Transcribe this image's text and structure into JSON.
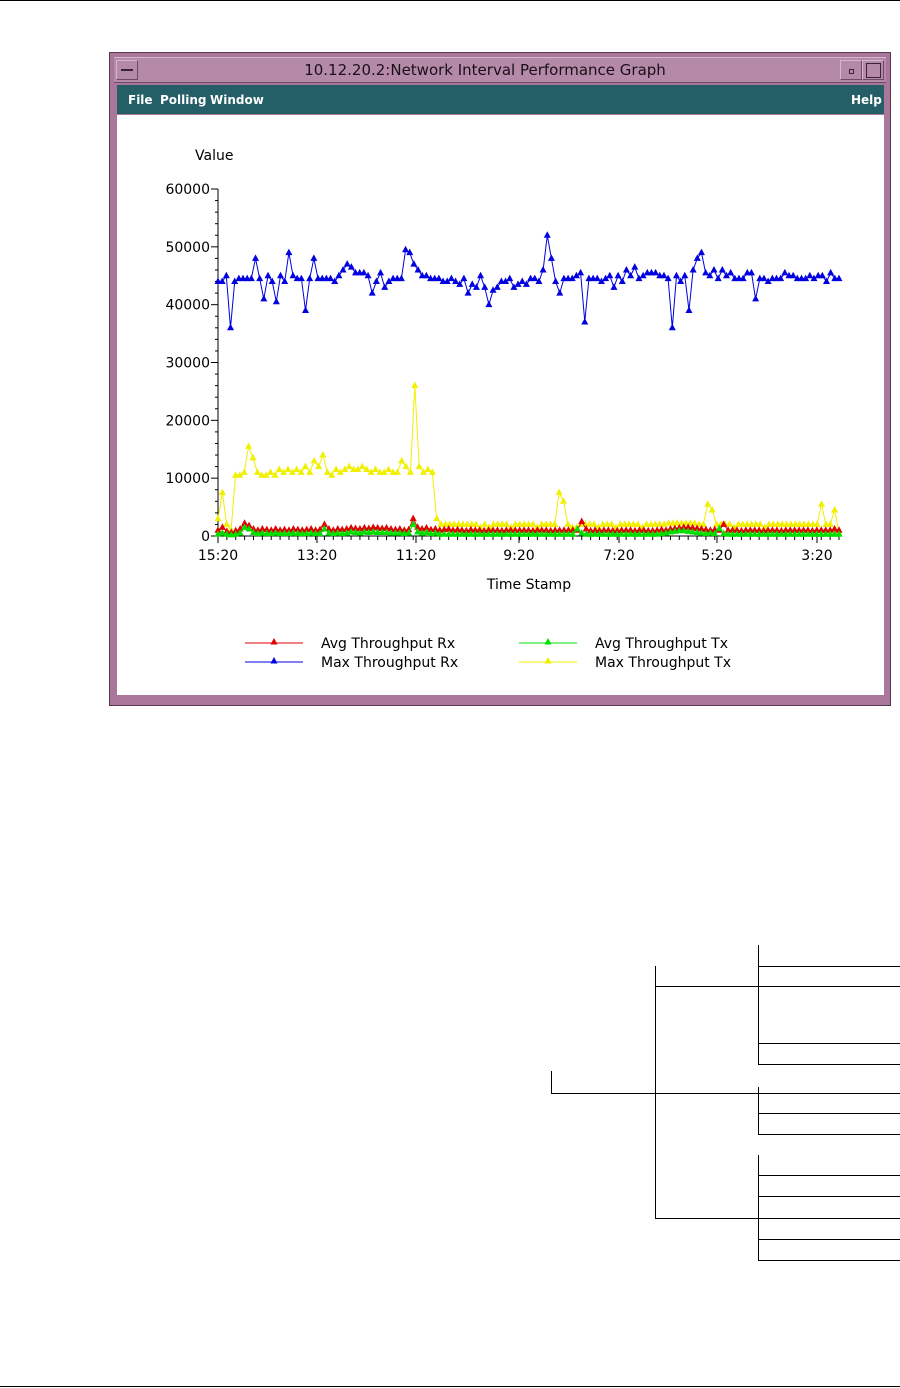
{
  "window": {
    "title": "10.12.20.2:Network Interval Performance Graph",
    "frame_color": "#a9779a",
    "menubar_color": "#245e66"
  },
  "menu": {
    "file": "File",
    "polling": "Polling",
    "window": "Window",
    "help": "Help"
  },
  "chart_data": {
    "type": "line",
    "title": "",
    "ylabel": "Value",
    "xlabel": "Time Stamp",
    "ylim": [
      0,
      60000
    ],
    "yticks": [
      "60000",
      "50000",
      "40000",
      "30000",
      "20000",
      "10000",
      "0"
    ],
    "xtick_labels": [
      "15:20",
      "13:20",
      "11:20",
      "9:20",
      "7:20",
      "5:20",
      "3:20"
    ],
    "legend_position": "bottom",
    "series": [
      {
        "name": "Avg Throughput Rx",
        "color": "#e00000",
        "values": [
          1000,
          1500,
          800,
          600,
          900,
          1200,
          2200,
          1800,
          1200,
          1000,
          1200,
          1100,
          1000,
          1200,
          1000,
          1100,
          1000,
          1200,
          1100,
          1000,
          1100,
          1200,
          1000,
          1100,
          2000,
          1200,
          1000,
          1200,
          1100,
          1200,
          1400,
          1300,
          1200,
          1400,
          1300,
          1500,
          1400,
          1300,
          1400,
          1200,
          1100,
          1200,
          1000,
          1100,
          3000,
          1500,
          1200,
          1400,
          1100,
          1200,
          1000,
          1100,
          1200,
          1000,
          1100,
          1000,
          900,
          1100,
          1000,
          1000,
          900,
          1000,
          1000,
          1000,
          900,
          1000,
          1000,
          1000,
          1000,
          1000,
          1000,
          900,
          1000,
          1000,
          1000,
          900,
          1000,
          1000,
          1000,
          1000,
          1000,
          1000,
          2500,
          1200,
          900,
          1000,
          900,
          1000,
          1000,
          900,
          900,
          1000,
          1000,
          1000,
          900,
          1000,
          1000,
          900,
          900,
          1000,
          1100,
          1000,
          1200,
          1300,
          1400,
          1500,
          1500,
          1400,
          1300,
          1200,
          1100,
          1000,
          1100,
          1000,
          2000,
          1000,
          1000,
          1000,
          900,
          1000,
          1000,
          1000,
          1000,
          900,
          1000,
          1000,
          1000,
          900,
          1000,
          1000,
          1000,
          1000,
          1000,
          1000,
          900,
          1000,
          1000,
          1000,
          1000,
          1200,
          1000
        ]
      },
      {
        "name": "Max Throughput Rx",
        "color": "#0000e0",
        "values": [
          44000,
          44000,
          45000,
          36000,
          44000,
          44500,
          44500,
          44500,
          44500,
          48000,
          44500,
          41000,
          45000,
          44000,
          40500,
          45000,
          44000,
          49000,
          45000,
          44500,
          44500,
          39000,
          44500,
          48000,
          44500,
          44500,
          44500,
          44500,
          44000,
          45000,
          46000,
          47000,
          46500,
          45500,
          45500,
          45500,
          45000,
          42000,
          44000,
          45500,
          43000,
          44000,
          44500,
          44500,
          44500,
          49500,
          49000,
          47000,
          46000,
          45000,
          45000,
          44500,
          44500,
          44500,
          44000,
          44000,
          44500,
          44000,
          43500,
          44500,
          42000,
          43500,
          43000,
          45000,
          43000,
          40000,
          42500,
          43000,
          44000,
          44000,
          44500,
          43000,
          43500,
          44000,
          43500,
          44500,
          44500,
          44000,
          46000,
          52000,
          48000,
          44000,
          42000,
          44500,
          44500,
          44500,
          45000,
          45500,
          37000,
          44500,
          44500,
          44500,
          44000,
          44500,
          45000,
          43000,
          45000,
          44000,
          46000,
          45000,
          46500,
          44500,
          45000,
          45500,
          45500,
          45500,
          45000,
          45000,
          44500,
          36000,
          45000,
          44000,
          45000,
          39000,
          46000,
          48000,
          49000,
          45500,
          45000,
          46000,
          44500,
          46000,
          45000,
          45500,
          44500,
          44500,
          44500,
          45500,
          45500,
          41000,
          44500,
          44500,
          44000,
          44500,
          44500,
          44500,
          45500,
          45000,
          45000,
          44500,
          44500,
          44500,
          45000,
          44500,
          45000,
          45000,
          44000,
          45500,
          44500,
          44500
        ]
      },
      {
        "name": "Avg Throughput Tx",
        "color": "#00e000",
        "values": [
          300,
          500,
          300,
          200,
          300,
          500,
          1500,
          1200,
          600,
          400,
          500,
          400,
          400,
          500,
          400,
          400,
          400,
          500,
          400,
          400,
          400,
          500,
          400,
          400,
          1200,
          500,
          400,
          500,
          400,
          500,
          700,
          600,
          500,
          700,
          600,
          700,
          600,
          600,
          600,
          500,
          500,
          500,
          400,
          500,
          2000,
          700,
          500,
          600,
          400,
          500,
          300,
          300,
          300,
          300,
          300,
          300,
          300,
          300,
          300,
          300,
          300,
          300,
          300,
          300,
          300,
          300,
          300,
          300,
          300,
          300,
          300,
          300,
          300,
          300,
          300,
          300,
          300,
          300,
          300,
          300,
          300,
          1200,
          500,
          300,
          300,
          300,
          300,
          300,
          300,
          300,
          300,
          300,
          300,
          300,
          300,
          300,
          300,
          300,
          300,
          300,
          400,
          500,
          700,
          800,
          900,
          900,
          800,
          700,
          600,
          500,
          400,
          500,
          400,
          1300,
          400,
          300,
          300,
          300,
          300,
          300,
          300,
          300,
          300,
          300,
          300,
          300,
          300,
          300,
          300,
          300,
          300,
          300,
          300,
          300,
          300,
          300,
          300,
          300,
          300,
          300,
          300
        ]
      },
      {
        "name": "Max Throughput Tx",
        "color": "#f0f000",
        "values": [
          3000,
          7500,
          2000,
          1000,
          10500,
          10500,
          11000,
          15500,
          13500,
          11000,
          10500,
          10500,
          11000,
          10500,
          11500,
          11000,
          11500,
          11000,
          11500,
          11000,
          12000,
          11000,
          13000,
          12000,
          14000,
          11000,
          10500,
          11500,
          11000,
          11500,
          12000,
          11500,
          11500,
          12000,
          11500,
          11000,
          11500,
          11000,
          11000,
          11500,
          11000,
          11000,
          13000,
          12000,
          11000,
          26000,
          12000,
          11000,
          11500,
          11000,
          3000,
          2000,
          2000,
          2000,
          2000,
          2000,
          2000,
          2000,
          2000,
          2000,
          1500,
          2000,
          1500,
          2000,
          2000,
          2000,
          2000,
          1500,
          2000,
          2000,
          2000,
          2000,
          2000,
          1500,
          2000,
          2000,
          2000,
          2000,
          7500,
          6000,
          2000,
          1500,
          1500,
          2000,
          2000,
          2000,
          2000,
          1500,
          2000,
          2000,
          2000,
          1500,
          2000,
          2000,
          2000,
          2000,
          2000,
          1500,
          2000,
          2000,
          2000,
          2000,
          2000,
          2200,
          2200,
          2200,
          2200,
          2200,
          2200,
          2200,
          2000,
          2000,
          5500,
          4500,
          2000,
          2000,
          2000,
          2000,
          1500,
          2000,
          2000,
          2000,
          2000,
          2000,
          2000,
          1500,
          2000,
          2000,
          2000,
          2000,
          2000,
          2000,
          2000,
          2000,
          2000,
          2000,
          2000,
          2000,
          5500,
          2000,
          2000,
          4500,
          500
        ]
      }
    ]
  }
}
